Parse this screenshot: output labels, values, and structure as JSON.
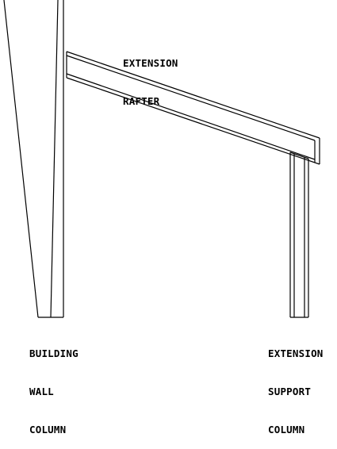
{
  "labels": {
    "rafter": [
      "EXTENSION",
      "RAFTER"
    ],
    "building_column": [
      "BUILDING",
      "WALL",
      "COLUMN"
    ],
    "support_column": [
      "EXTENSION",
      "SUPPORT",
      "COLUMN"
    ]
  },
  "colors": {
    "stroke": "#000000",
    "background": "#ffffff"
  }
}
